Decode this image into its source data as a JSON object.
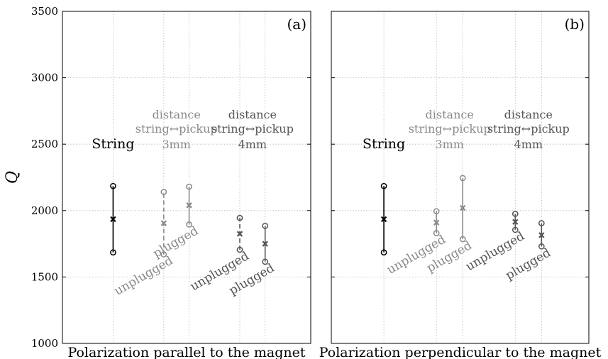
{
  "chart_data": [
    {
      "type": "scatter",
      "panel_label": "(a)",
      "xlabel": "Polarization parallel to the magnet",
      "ylabel": "Q",
      "ylim": [
        1000,
        3500
      ],
      "yticks": [
        1000,
        1500,
        2000,
        2500,
        3000,
        3500
      ],
      "grid": true,
      "groups": [
        {
          "title_lines": [
            "String"
          ],
          "shade": "#000000"
        },
        {
          "title_lines": [
            "distance",
            "string↔pickup",
            "3mm"
          ],
          "shade": "#8a8a8a"
        },
        {
          "title_lines": [
            "distance",
            "string↔pickup",
            "4mm"
          ],
          "shade": "#555555"
        }
      ],
      "series": [
        {
          "label": "",
          "group": 0,
          "x": 1.0,
          "mean": 1935,
          "low": 1685,
          "high": 2185,
          "line": "solid",
          "color": "#000000"
        },
        {
          "label": "unplugged",
          "group": 1,
          "x": 2.0,
          "mean": 1905,
          "low": 1670,
          "high": 2140,
          "line": "dashed",
          "color": "#8a8a8a"
        },
        {
          "label": "plugged",
          "group": 1,
          "x": 2.5,
          "mean": 2040,
          "low": 1895,
          "high": 2180,
          "line": "solid",
          "color": "#8a8a8a"
        },
        {
          "label": "unplugged",
          "group": 2,
          "x": 3.5,
          "mean": 1825,
          "low": 1705,
          "high": 1945,
          "line": "dashed",
          "color": "#555555"
        },
        {
          "label": "plugged",
          "group": 2,
          "x": 4.0,
          "mean": 1750,
          "low": 1615,
          "high": 1885,
          "line": "solid",
          "color": "#555555"
        }
      ]
    },
    {
      "type": "scatter",
      "panel_label": "(b)",
      "xlabel": "Polarization perpendicular to the magnet",
      "ylabel": "",
      "ylim": [
        1000,
        3500
      ],
      "yticks": [
        1000,
        1500,
        2000,
        2500,
        3000,
        3500
      ],
      "grid": true,
      "groups": [
        {
          "title_lines": [
            "String"
          ],
          "shade": "#000000"
        },
        {
          "title_lines": [
            "distance",
            "string↔pickup",
            "3mm"
          ],
          "shade": "#8a8a8a"
        },
        {
          "title_lines": [
            "distance",
            "string↔pickup",
            "4mm"
          ],
          "shade": "#555555"
        }
      ],
      "series": [
        {
          "label": "",
          "group": 0,
          "x": 1.0,
          "mean": 1935,
          "low": 1685,
          "high": 2185,
          "line": "solid",
          "color": "#000000"
        },
        {
          "label": "unplugged",
          "group": 1,
          "x": 2.0,
          "mean": 1910,
          "low": 1830,
          "high": 1995,
          "line": "solid",
          "color": "#8a8a8a"
        },
        {
          "label": "plugged",
          "group": 1,
          "x": 2.5,
          "mean": 2020,
          "low": 1785,
          "high": 2245,
          "line": "solid",
          "color": "#8a8a8a"
        },
        {
          "label": "unplugged",
          "group": 2,
          "x": 3.5,
          "mean": 1915,
          "low": 1855,
          "high": 1975,
          "line": "solid",
          "color": "#555555"
        },
        {
          "label": "plugged",
          "group": 2,
          "x": 4.0,
          "mean": 1815,
          "low": 1730,
          "high": 1905,
          "line": "solid",
          "color": "#555555"
        }
      ]
    }
  ]
}
